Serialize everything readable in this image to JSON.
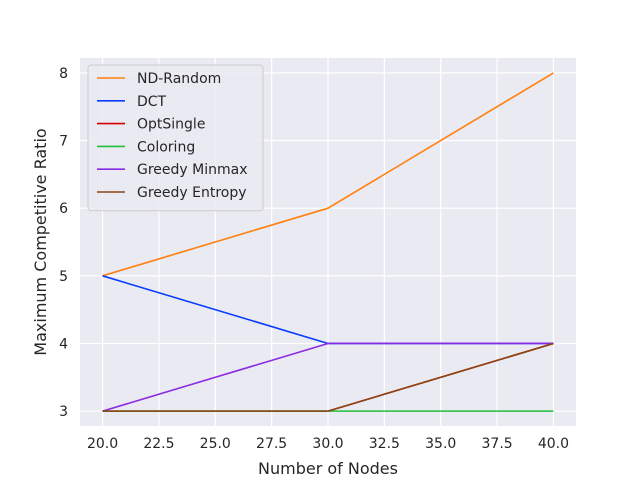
{
  "chart_data": {
    "type": "line",
    "xlabel": "Number of Nodes",
    "ylabel": "Maximum Competitive Ratio",
    "xlim": [
      19.0,
      41.0
    ],
    "ylim": [
      2.78,
      8.22
    ],
    "x_ticks": [
      "20.0",
      "22.5",
      "25.0",
      "27.5",
      "30.0",
      "32.5",
      "35.0",
      "37.5",
      "40.0"
    ],
    "y_ticks": [
      "3",
      "4",
      "5",
      "6",
      "7",
      "8"
    ],
    "x": [
      20,
      30,
      40
    ],
    "grid": true,
    "legend_position": "upper-left",
    "series": [
      {
        "name": "ND-Random",
        "color": "#ff7f0e",
        "values": [
          5,
          6,
          8
        ]
      },
      {
        "name": "DCT",
        "color": "#0a3cff",
        "values": [
          5,
          4,
          4
        ]
      },
      {
        "name": "OptSingle",
        "color": "#d40000",
        "values": [
          3,
          3,
          4
        ]
      },
      {
        "name": "Coloring",
        "color": "#1fbf3a",
        "values": [
          3,
          3,
          3
        ]
      },
      {
        "name": "Greedy Minmax",
        "color": "#8a2be2",
        "values": [
          3,
          4,
          4
        ]
      },
      {
        "name": "Greedy Entropy",
        "color": "#8b4513",
        "values": [
          3,
          3,
          4
        ]
      }
    ]
  }
}
